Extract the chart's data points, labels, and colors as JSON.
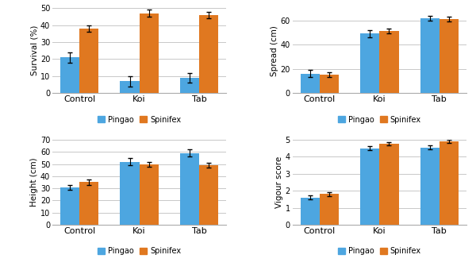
{
  "subplots": [
    {
      "ylabel": "Survival (%)",
      "ylim": [
        0,
        50
      ],
      "yticks": [
        0,
        10,
        20,
        30,
        40,
        50
      ],
      "categories": [
        "Control",
        "Koi",
        "Tab"
      ],
      "pingao_values": [
        21,
        7,
        9
      ],
      "spinifex_values": [
        38,
        47,
        46
      ],
      "pingao_errors": [
        3,
        3,
        3
      ],
      "spinifex_errors": [
        2,
        2,
        2
      ]
    },
    {
      "ylabel": "Spread (cm)",
      "ylim": [
        0,
        70
      ],
      "yticks": [
        0,
        20,
        40,
        60
      ],
      "categories": [
        "Control",
        "Koi",
        "Tab"
      ],
      "pingao_values": [
        16,
        49,
        62
      ],
      "spinifex_values": [
        15,
        51,
        61
      ],
      "pingao_errors": [
        3,
        3,
        2
      ],
      "spinifex_errors": [
        2,
        2,
        2
      ]
    },
    {
      "ylabel": "Height (cm)",
      "ylim": [
        0,
        70
      ],
      "yticks": [
        0,
        10,
        20,
        30,
        40,
        50,
        60,
        70
      ],
      "categories": [
        "Control",
        "Koi",
        "Tab"
      ],
      "pingao_values": [
        31,
        52,
        59
      ],
      "spinifex_values": [
        35,
        50,
        49
      ],
      "pingao_errors": [
        2,
        3,
        3
      ],
      "spinifex_errors": [
        2,
        2,
        2
      ]
    },
    {
      "ylabel": "Vigour score",
      "ylim": [
        0,
        5
      ],
      "yticks": [
        0,
        1,
        2,
        3,
        4,
        5
      ],
      "categories": [
        "Control",
        "Koi",
        "Tab"
      ],
      "pingao_values": [
        1.6,
        4.5,
        4.55
      ],
      "spinifex_values": [
        1.8,
        4.75,
        4.9
      ],
      "pingao_errors": [
        0.12,
        0.12,
        0.12
      ],
      "spinifex_errors": [
        0.12,
        0.1,
        0.1
      ]
    }
  ],
  "pingao_color": "#4da6e0",
  "spinifex_color": "#e07820",
  "bar_width": 0.32,
  "background_color": "#ffffff",
  "grid_color": "#c8c8c8",
  "legend_labels": [
    "Pingao",
    "Spinifex"
  ]
}
